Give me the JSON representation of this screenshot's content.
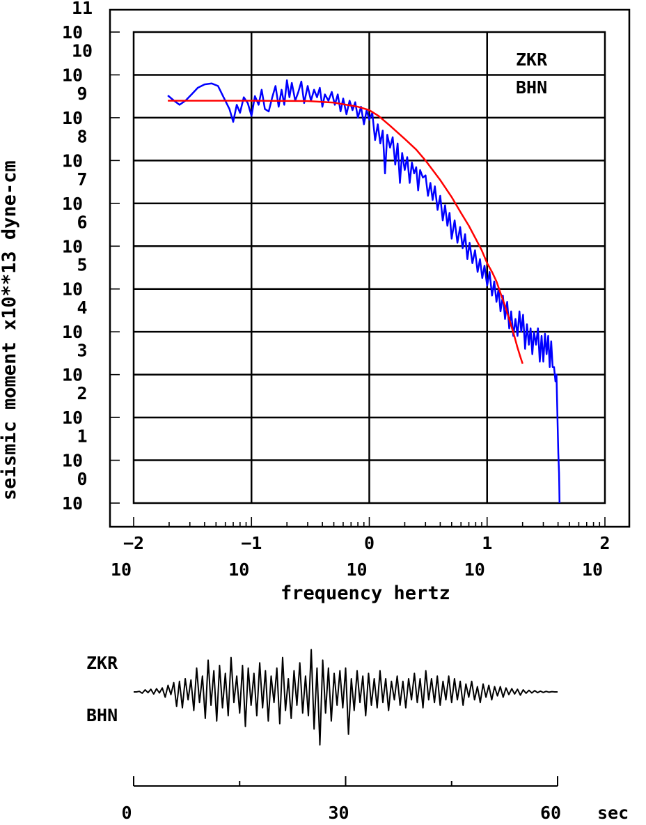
{
  "chart_data": [
    {
      "type": "line",
      "xscale": "log",
      "yscale": "log",
      "xlabel": "frequency hertz",
      "ylabel": "seismic moment x10**13 dyne-cm",
      "xlim": [
        0.01,
        100
      ],
      "ylim": [
        1,
        100000000000
      ],
      "x_ticks": [
        {
          "base": "10",
          "exp": "−2"
        },
        {
          "base": "10",
          "exp": "−1"
        },
        {
          "base": "10",
          "exp": "0"
        },
        {
          "base": "10",
          "exp": "1"
        },
        {
          "base": "10",
          "exp": "2"
        }
      ],
      "y_ticks": [
        {
          "base": "10",
          "exp": "0"
        },
        {
          "base": "10",
          "exp": "1"
        },
        {
          "base": "10",
          "exp": "2"
        },
        {
          "base": "10",
          "exp": "3"
        },
        {
          "base": "10",
          "exp": "4"
        },
        {
          "base": "10",
          "exp": "5"
        },
        {
          "base": "10",
          "exp": "6"
        },
        {
          "base": "10",
          "exp": "7"
        },
        {
          "base": "10",
          "exp": "8"
        },
        {
          "base": "10",
          "exp": "9"
        },
        {
          "base": "10",
          "exp": "10"
        },
        {
          "base": "10",
          "exp": "11"
        }
      ],
      "grid": true,
      "annotations": [
        "ZKR",
        "BHN"
      ],
      "series": [
        {
          "color": "#0000ff",
          "points": [
            [
              0.0195,
              3300000000.0
            ],
            [
              0.022,
              2500000000.0
            ],
            [
              0.0245,
              2000000000.0
            ],
            [
              0.0275,
              2500000000.0
            ],
            [
              0.031,
              3500000000.0
            ],
            [
              0.035,
              5000000000.0
            ],
            [
              0.04,
              6000000000.0
            ],
            [
              0.046,
              6300000000.0
            ],
            [
              0.052,
              5500000000.0
            ],
            [
              0.058,
              3000000000.0
            ],
            [
              0.065,
              1600000000.0
            ],
            [
              0.07,
              800000000.0
            ],
            [
              0.075,
              2000000000.0
            ],
            [
              0.08,
              1300000000.0
            ],
            [
              0.086,
              3000000000.0
            ],
            [
              0.093,
              2200000000.0
            ],
            [
              0.1,
              1100000000.0
            ],
            [
              0.107,
              3200000000.0
            ],
            [
              0.115,
              2000000000.0
            ],
            [
              0.122,
              4500000000.0
            ],
            [
              0.13,
              1600000000.0
            ],
            [
              0.14,
              1400000000.0
            ],
            [
              0.15,
              3000000000.0
            ],
            [
              0.16,
              5500000000.0
            ],
            [
              0.17,
              1800000000.0
            ],
            [
              0.18,
              4500000000.0
            ],
            [
              0.19,
              2000000000.0
            ],
            [
              0.2,
              7500000000.0
            ],
            [
              0.21,
              3000000000.0
            ],
            [
              0.22,
              6500000000.0
            ],
            [
              0.235,
              2500000000.0
            ],
            [
              0.25,
              4000000000.0
            ],
            [
              0.265,
              7000000000.0
            ],
            [
              0.28,
              2200000000.0
            ],
            [
              0.3,
              5500000000.0
            ],
            [
              0.32,
              2500000000.0
            ],
            [
              0.34,
              4500000000.0
            ],
            [
              0.36,
              3000000000.0
            ],
            [
              0.38,
              5000000000.0
            ],
            [
              0.4,
              1800000000.0
            ],
            [
              0.42,
              3500000000.0
            ],
            [
              0.45,
              2500000000.0
            ],
            [
              0.48,
              4000000000.0
            ],
            [
              0.51,
              2000000000.0
            ],
            [
              0.54,
              3500000000.0
            ],
            [
              0.57,
              1400000000.0
            ],
            [
              0.6,
              2800000000.0
            ],
            [
              0.64,
              1200000000.0
            ],
            [
              0.68,
              2500000000.0
            ],
            [
              0.72,
              1500000000.0
            ],
            [
              0.76,
              2300000000.0
            ],
            [
              0.8,
              1000000000.0
            ],
            [
              0.85,
              1800000000.0
            ],
            [
              0.9,
              700000000.0
            ],
            [
              0.95,
              1500000000.0
            ],
            [
              1.0,
              900000000.0
            ],
            [
              1.06,
              1300000000.0
            ],
            [
              1.12,
              300000000.0
            ],
            [
              1.18,
              700000000.0
            ],
            [
              1.24,
              250000000.0
            ],
            [
              1.3,
              500000000.0
            ],
            [
              1.36,
              50000000.0
            ],
            [
              1.42,
              400000000.0
            ],
            [
              1.5,
              200000000.0
            ],
            [
              1.58,
              350000000.0
            ],
            [
              1.66,
              80000000.0
            ],
            [
              1.74,
              250000000.0
            ],
            [
              1.82,
              30000000.0
            ],
            [
              1.9,
              150000000.0
            ],
            [
              2.0,
              60000000.0
            ],
            [
              2.1,
              120000000.0
            ],
            [
              2.2,
              30000000.0
            ],
            [
              2.3,
              90000000.0
            ],
            [
              2.4,
              50000000.0
            ],
            [
              2.5,
              70000000.0
            ],
            [
              2.6,
              20000000.0
            ],
            [
              2.7,
              60000000.0
            ],
            [
              2.85,
              40000000.0
            ],
            [
              3.0,
              45000000.0
            ],
            [
              3.15,
              15000000.0
            ],
            [
              3.3,
              30000000.0
            ],
            [
              3.45,
              12000000.0
            ],
            [
              3.6,
              25000000.0
            ],
            [
              3.8,
              7000000.0
            ],
            [
              4.0,
              15000000.0
            ],
            [
              4.2,
              4000000.0
            ],
            [
              4.4,
              9000000.0
            ],
            [
              4.6,
              3000000.0
            ],
            [
              4.8,
              6000000.0
            ],
            [
              5.0,
              1500000.0
            ],
            [
              5.3,
              4000000.0
            ],
            [
              5.6,
              1200000.0
            ],
            [
              5.9,
              2800000.0
            ],
            [
              6.2,
              900000.0
            ],
            [
              6.5,
              1900000.0
            ],
            [
              6.8,
              500000.0
            ],
            [
              7.1,
              1200000.0
            ],
            [
              7.5,
              400000.0
            ],
            [
              7.9,
              800000.0
            ],
            [
              8.3,
              250000.0
            ],
            [
              8.7,
              500000.0
            ],
            [
              9.1,
              180000.0
            ],
            [
              9.5,
              350000.0
            ],
            [
              10.0,
              120000.0
            ],
            [
              10.5,
              250000.0
            ],
            [
              11.0,
              70000.0
            ],
            [
              11.5,
              150000.0
            ],
            [
              12.0,
              50000.0
            ],
            [
              12.5,
              100000.0
            ],
            [
              13.0,
              30000.0
            ],
            [
              13.6,
              70000.0
            ],
            [
              14.2,
              20000.0
            ],
            [
              14.8,
              50000.0
            ],
            [
              15.4,
              12000.0
            ],
            [
              16.0,
              30000.0
            ],
            [
              16.7,
              8000.0
            ],
            [
              17.4,
              20000.0
            ],
            [
              18.1,
              8000.0
            ],
            [
              18.8,
              30000.0
            ],
            [
              19.5,
              10000.0
            ],
            [
              20.2,
              25000.0
            ],
            [
              21.0,
              4000.0
            ],
            [
              21.8,
              15000.0
            ],
            [
              22.6,
              5000.0
            ],
            [
              23.4,
              12000.0
            ],
            [
              24.2,
              3000.0
            ],
            [
              25.0,
              10000.0
            ],
            [
              26.0,
              5000.0
            ],
            [
              27.0,
              12000.0
            ],
            [
              28.0,
              2000.0
            ],
            [
              29.0,
              8000.0
            ],
            [
              30.0,
              2000.0
            ],
            [
              31.0,
              9000.0
            ],
            [
              32.0,
              3000.0
            ],
            [
              33.0,
              8000.0
            ],
            [
              34.0,
              1500.0
            ],
            [
              35.0,
              6000.0
            ],
            [
              36.0,
              1500.0
            ],
            [
              37.0,
              1500.0
            ],
            [
              38.0,
              700.0
            ],
            [
              38.8,
              1000.0
            ],
            [
              39.5,
              120.0
            ],
            [
              40.2,
              15.0
            ],
            [
              40.8,
              5.0
            ],
            [
              41.2,
              1.0
            ]
          ]
        },
        {
          "color": "#ff0000",
          "points": [
            [
              0.0195,
              2500000000.0
            ],
            [
              0.05,
              2500000000.0
            ],
            [
              0.1,
              2500000000.0
            ],
            [
              0.3,
              2450000000.0
            ],
            [
              0.5,
              2250000000.0
            ],
            [
              0.8,
              1800000000.0
            ],
            [
              1.0,
              1500000000.0
            ],
            [
              1.2,
              1100000000.0
            ],
            [
              1.5,
              650000000.0
            ],
            [
              2.0,
              320000000.0
            ],
            [
              2.5,
              180000000.0
            ],
            [
              3.0,
              100000000.0
            ],
            [
              4.0,
              35000000.0
            ],
            [
              5.0,
              14000000.0
            ],
            [
              6.0,
              6000000.0
            ],
            [
              7.0,
              3000000.0
            ],
            [
              8.0,
              1500000.0
            ],
            [
              9.0,
              800000.0
            ],
            [
              10.0,
              400000.0
            ],
            [
              11.0,
              250000.0
            ],
            [
              12.0,
              150000.0
            ],
            [
              13.0,
              80000.0
            ],
            [
              14.0,
              45000.0
            ],
            [
              15.0,
              25000.0
            ],
            [
              16.0,
              14000.0
            ],
            [
              17.0,
              8000.0
            ],
            [
              18.0,
              4500.0
            ],
            [
              19.0,
              2800.0
            ],
            [
              20.0,
              1800.0
            ]
          ]
        }
      ]
    },
    {
      "type": "line",
      "xlim": [
        0,
        60
      ],
      "x_ticks": [
        "0",
        "30",
        "60"
      ],
      "x_unit": "sec",
      "annotations": [
        "ZKR",
        "BHN"
      ],
      "series": [
        {
          "color": "#000000",
          "values": [
            0,
            0,
            0.02,
            -0.05,
            0.08,
            -0.03,
            0.1,
            -0.08,
            0.12,
            -0.04,
            0.15,
            -0.2,
            0.25,
            -0.1,
            0.35,
            -0.55,
            0.4,
            -0.6,
            0.5,
            -0.3,
            0.45,
            -0.7,
            0.9,
            -0.4,
            0.6,
            -1.0,
            1.2,
            -0.5,
            0.8,
            -1.1,
            1.0,
            -0.6,
            0.7,
            -0.9,
            1.3,
            -0.4,
            0.6,
            -0.8,
            1.0,
            -1.3,
            0.9,
            -0.5,
            0.7,
            -0.9,
            1.1,
            -0.6,
            0.8,
            -1.1,
            0.6,
            -0.4,
            0.9,
            -1.2,
            1.3,
            -0.7,
            0.5,
            -1.0,
            0.8,
            -0.5,
            1.1,
            -0.8,
            0.6,
            -0.9,
            1.6,
            -1.4,
            0.9,
            -2.0,
            1.2,
            -0.8,
            0.9,
            -1.1,
            0.7,
            -0.5,
            0.8,
            -0.6,
            0.9,
            -1.6,
            0.5,
            -0.7,
            0.8,
            -0.4,
            0.6,
            -0.9,
            0.7,
            -0.5,
            0.5,
            -0.6,
            0.8,
            -0.4,
            0.5,
            -0.7,
            0.4,
            -0.3,
            0.6,
            -0.5,
            0.4,
            -0.6,
            0.5,
            -0.3,
            0.7,
            -0.4,
            0.5,
            -0.6,
            0.8,
            -0.3,
            0.5,
            -0.4,
            0.6,
            -0.5,
            0.4,
            -0.3,
            0.6,
            -0.4,
            0.5,
            -0.3,
            0.4,
            -0.5,
            0.3,
            -0.2,
            0.4,
            -0.3,
            0.2,
            -0.4,
            0.3,
            -0.2,
            0.25,
            -0.3,
            0.2,
            -0.15,
            0.2,
            -0.2,
            0.15,
            -0.1,
            0.12,
            -0.08,
            0.1,
            -0.12,
            0.08,
            -0.05,
            0.06,
            -0.04,
            0.05,
            -0.03,
            0.03,
            -0.02,
            0.02,
            -0.01,
            0.01,
            0,
            0
          ]
        }
      ]
    }
  ]
}
